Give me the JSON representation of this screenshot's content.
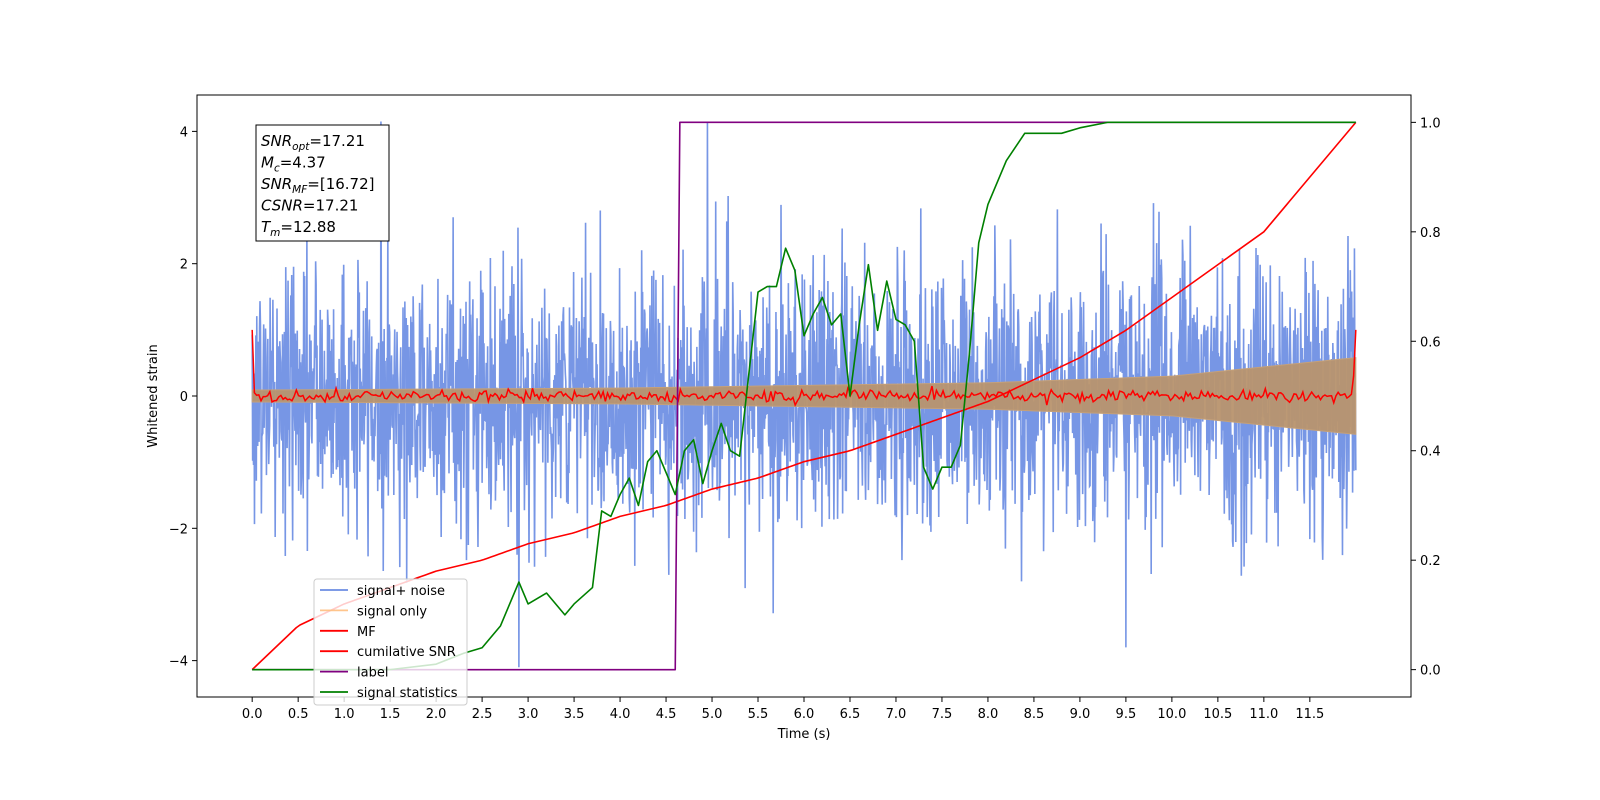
{
  "chart_data": {
    "type": "line",
    "title": "",
    "xlabel": "Time (s)",
    "ylabel": "Whitened strain",
    "y2label": "",
    "xlim": [
      -0.6,
      12.6
    ],
    "ylim": [
      -4.55,
      4.55
    ],
    "y2lim": [
      -0.05,
      1.05
    ],
    "x_ticks": [
      "0.0",
      "0.5",
      "1.0",
      "1.5",
      "2.0",
      "2.5",
      "3.0",
      "3.5",
      "4.0",
      "4.5",
      "5.0",
      "5.5",
      "6.0",
      "6.5",
      "7.0",
      "7.5",
      "8.0",
      "8.5",
      "9.0",
      "9.5",
      "10.0",
      "10.5",
      "11.0",
      "11.5"
    ],
    "y_ticks": [
      "-4",
      "-2",
      "0",
      "2",
      "4"
    ],
    "y2_ticks": [
      "0.0",
      "0.2",
      "0.4",
      "0.6",
      "0.8",
      "1.0"
    ],
    "grid": false,
    "legend_position": "lower-left",
    "annotation": {
      "lines": [
        {
          "sym": "SNR",
          "sub": "opt",
          "val": "=17.21"
        },
        {
          "sym": "M",
          "sub": "c",
          "val": "=4.37"
        },
        {
          "sym": "SNR",
          "sub": "MF",
          "val": "=[16.72]"
        },
        {
          "sym": "CSNR",
          "sub": "",
          "val": "=17.21"
        },
        {
          "sym": "T",
          "sub": "m",
          "val": "=12.88"
        }
      ]
    },
    "series": [
      {
        "name": "signal+ noise",
        "color": "#6b8de3",
        "axis": "left",
        "kind": "noise",
        "x_range": [
          0,
          12
        ],
        "amplitude_sigma": 1.0,
        "extremes": [
          [
            1.4,
            4.15
          ],
          [
            4.95,
            4.15
          ],
          [
            2.9,
            -4.1
          ],
          [
            9.5,
            -3.8
          ]
        ]
      },
      {
        "name": "signal only",
        "color": "#ffbf80",
        "axis": "left",
        "kind": "envelope",
        "x_range": [
          0,
          12
        ],
        "envelope": [
          [
            0,
            0.09
          ],
          [
            4,
            0.12
          ],
          [
            8,
            0.2
          ],
          [
            10,
            0.3
          ],
          [
            12,
            0.58
          ]
        ]
      },
      {
        "name": "MF",
        "color": "#ff0000",
        "axis": "left",
        "kind": "mf",
        "x_range": [
          0,
          12
        ],
        "start_value": 1.0,
        "end_value": 1.0,
        "baseline": 0.0
      },
      {
        "name": "cumilative SNR",
        "color": "#ff0000",
        "axis": "right",
        "x": [
          0,
          0.5,
          1,
          1.5,
          2,
          2.5,
          3,
          3.5,
          4,
          4.5,
          5,
          5.5,
          6,
          6.5,
          7,
          7.5,
          8,
          8.5,
          9,
          9.5,
          10,
          10.5,
          11,
          11.5,
          12
        ],
        "y": [
          0.0,
          0.08,
          0.12,
          0.15,
          0.18,
          0.2,
          0.23,
          0.25,
          0.28,
          0.3,
          0.33,
          0.35,
          0.38,
          0.4,
          0.43,
          0.46,
          0.49,
          0.53,
          0.57,
          0.62,
          0.68,
          0.74,
          0.8,
          0.9,
          1.0
        ]
      },
      {
        "name": "label",
        "color": "#800080",
        "axis": "right",
        "x": [
          0,
          4.6,
          4.65,
          12
        ],
        "y": [
          0,
          0,
          1,
          1
        ]
      },
      {
        "name": "signal statistics",
        "color": "#008000",
        "axis": "right",
        "x": [
          0,
          0.5,
          1.0,
          1.5,
          2.0,
          2.3,
          2.5,
          2.7,
          2.9,
          3.0,
          3.2,
          3.4,
          3.5,
          3.7,
          3.8,
          3.9,
          4.0,
          4.1,
          4.2,
          4.3,
          4.4,
          4.5,
          4.6,
          4.7,
          4.8,
          4.9,
          5.0,
          5.1,
          5.2,
          5.3,
          5.5,
          5.6,
          5.7,
          5.8,
          5.9,
          6.0,
          6.1,
          6.2,
          6.3,
          6.4,
          6.5,
          6.6,
          6.7,
          6.8,
          6.9,
          7.0,
          7.1,
          7.2,
          7.3,
          7.4,
          7.5,
          7.6,
          7.7,
          7.8,
          7.9,
          8.0,
          8.2,
          8.4,
          8.6,
          8.8,
          9.0,
          9.3,
          9.6,
          10.0,
          10.5,
          11.0,
          11.5,
          12.0
        ],
        "y": [
          0.0,
          0.0,
          0.0,
          0.0,
          0.01,
          0.03,
          0.04,
          0.08,
          0.16,
          0.12,
          0.14,
          0.1,
          0.12,
          0.15,
          0.29,
          0.28,
          0.32,
          0.35,
          0.3,
          0.38,
          0.4,
          0.36,
          0.32,
          0.4,
          0.42,
          0.34,
          0.4,
          0.45,
          0.4,
          0.39,
          0.69,
          0.7,
          0.7,
          0.77,
          0.73,
          0.61,
          0.65,
          0.68,
          0.63,
          0.65,
          0.5,
          0.63,
          0.74,
          0.62,
          0.71,
          0.64,
          0.63,
          0.6,
          0.37,
          0.33,
          0.37,
          0.37,
          0.41,
          0.58,
          0.78,
          0.85,
          0.93,
          0.98,
          0.98,
          0.98,
          0.99,
          1.0,
          1.0,
          1.0,
          1.0,
          1.0,
          1.0,
          1.0
        ]
      }
    ]
  }
}
